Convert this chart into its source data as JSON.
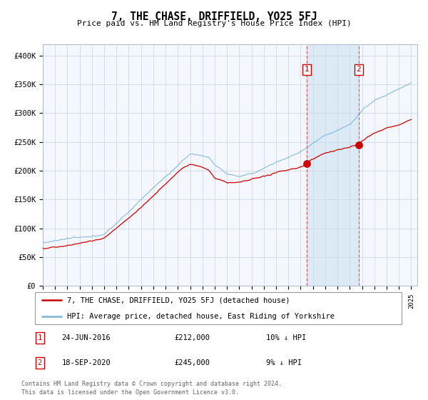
{
  "title": "7, THE CHASE, DRIFFIELD, YO25 5FJ",
  "subtitle": "Price paid vs. HM Land Registry's House Price Index (HPI)",
  "ylim": [
    0,
    420000
  ],
  "yticks": [
    0,
    50000,
    100000,
    150000,
    200000,
    250000,
    300000,
    350000,
    400000
  ],
  "ytick_labels": [
    "£0",
    "£50K",
    "£100K",
    "£150K",
    "£200K",
    "£250K",
    "£300K",
    "£350K",
    "£400K"
  ],
  "hpi_color": "#7ab4d8",
  "price_color": "#cc0000",
  "sale1_date_num": 2016.48,
  "sale1_price": 212000,
  "sale1_label": "1",
  "sale1_date_str": "24-JUN-2016",
  "sale1_pct": "10% ↓ HPI",
  "sale2_date_num": 2020.72,
  "sale2_price": 245000,
  "sale2_label": "2",
  "sale2_date_str": "18-SEP-2020",
  "sale2_pct": "9% ↓ HPI",
  "legend1": "7, THE CHASE, DRIFFIELD, YO25 5FJ (detached house)",
  "legend2": "HPI: Average price, detached house, East Riding of Yorkshire",
  "footer1": "Contains HM Land Registry data © Crown copyright and database right 2024.",
  "footer2": "This data is licensed under the Open Government Licence v3.0.",
  "plot_bg_color": "#f4f7fd",
  "fig_bg_color": "#ffffff",
  "grid_color": "#d0d8e8",
  "shading_color": "#d8e8f5"
}
